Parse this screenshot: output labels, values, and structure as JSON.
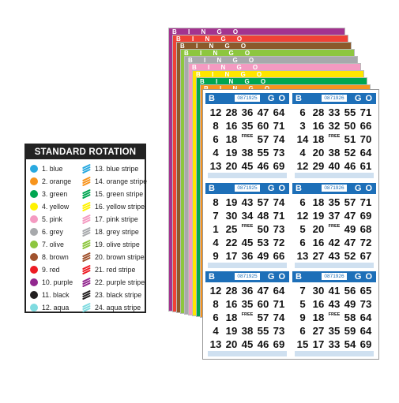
{
  "legend": {
    "title": "STANDARD ROTATION",
    "items": [
      {
        "label": "1. blue",
        "color": "#29a9e0",
        "stripe": false
      },
      {
        "label": "2. orange",
        "color": "#f7941d",
        "stripe": false
      },
      {
        "label": "3. green",
        "color": "#00a651",
        "stripe": false
      },
      {
        "label": "4. yellow",
        "color": "#fff200",
        "stripe": false
      },
      {
        "label": "5. pink",
        "color": "#f49ac1",
        "stripe": false
      },
      {
        "label": "6. grey",
        "color": "#a7a9ac",
        "stripe": false
      },
      {
        "label": "7. olive",
        "color": "#8dc63f",
        "stripe": false
      },
      {
        "label": "8. brown",
        "color": "#a0522d",
        "stripe": false
      },
      {
        "label": "9. red",
        "color": "#ed1c24",
        "stripe": false
      },
      {
        "label": "10. purple",
        "color": "#92278f",
        "stripe": false
      },
      {
        "label": "11. black",
        "color": "#231f20",
        "stripe": false
      },
      {
        "label": "12. aqua",
        "color": "#7fdbe0",
        "stripe": false
      },
      {
        "label": "13. blue stripe",
        "color": "#29a9e0",
        "stripe": true
      },
      {
        "label": "14. orange stripe",
        "color": "#f7941d",
        "stripe": true
      },
      {
        "label": "15. green stripe",
        "color": "#00a651",
        "stripe": true
      },
      {
        "label": "16. yellow stripe",
        "color": "#fff200",
        "stripe": true
      },
      {
        "label": "17. pink stripe",
        "color": "#f49ac1",
        "stripe": true
      },
      {
        "label": "18. grey stripe",
        "color": "#a7a9ac",
        "stripe": true
      },
      {
        "label": "19. olive stripe",
        "color": "#8dc63f",
        "stripe": true
      },
      {
        "label": "20. brown stripe",
        "color": "#a0522d",
        "stripe": true
      },
      {
        "label": "21. red stripe",
        "color": "#ed1c24",
        "stripe": true
      },
      {
        "label": "22. purple stripe",
        "color": "#92278f",
        "stripe": true
      },
      {
        "label": "23. black stripe",
        "color": "#231f20",
        "stripe": true
      },
      {
        "label": "24. aqua stripe",
        "color": "#7fdbe0",
        "stripe": true
      }
    ]
  },
  "sheets": [
    {
      "color": "#a3338f"
    },
    {
      "color": "#ef4136"
    },
    {
      "color": "#8b5a2b"
    },
    {
      "color": "#8dc63f"
    },
    {
      "color": "#a7a9ac"
    },
    {
      "color": "#f49ac1"
    },
    {
      "color": "#ffe600"
    },
    {
      "color": "#00a651"
    },
    {
      "color": "#f7941d"
    }
  ],
  "sheet_label": "B I N G O",
  "cards": [
    {
      "serial": "0871925",
      "nums": [
        [
          "12",
          "28",
          "36",
          "47",
          "64"
        ],
        [
          "8",
          "16",
          "35",
          "60",
          "71"
        ],
        [
          "6",
          "18",
          "FREE",
          "57",
          "74"
        ],
        [
          "4",
          "19",
          "38",
          "55",
          "73"
        ],
        [
          "13",
          "20",
          "45",
          "46",
          "69"
        ]
      ]
    },
    {
      "serial": "0871926",
      "nums": [
        [
          "6",
          "28",
          "33",
          "55",
          "71"
        ],
        [
          "3",
          "16",
          "32",
          "50",
          "66"
        ],
        [
          "14",
          "18",
          "FREE",
          "51",
          "70"
        ],
        [
          "4",
          "20",
          "38",
          "52",
          "64"
        ],
        [
          "12",
          "29",
          "40",
          "46",
          "61"
        ]
      ]
    },
    {
      "serial": "0871925",
      "nums": [
        [
          "8",
          "19",
          "43",
          "57",
          "74"
        ],
        [
          "7",
          "30",
          "34",
          "48",
          "71"
        ],
        [
          "1",
          "25",
          "FREE",
          "50",
          "73"
        ],
        [
          "4",
          "22",
          "45",
          "53",
          "72"
        ],
        [
          "9",
          "17",
          "36",
          "49",
          "66"
        ]
      ]
    },
    {
      "serial": "0871926",
      "nums": [
        [
          "6",
          "18",
          "35",
          "57",
          "71"
        ],
        [
          "12",
          "19",
          "37",
          "47",
          "69"
        ],
        [
          "5",
          "20",
          "FREE",
          "49",
          "68"
        ],
        [
          "6",
          "16",
          "42",
          "47",
          "72"
        ],
        [
          "13",
          "27",
          "43",
          "52",
          "67"
        ]
      ]
    },
    {
      "serial": "0871925",
      "nums": [
        [
          "12",
          "28",
          "36",
          "47",
          "64"
        ],
        [
          "8",
          "16",
          "35",
          "60",
          "71"
        ],
        [
          "6",
          "18",
          "FREE",
          "57",
          "74"
        ],
        [
          "4",
          "19",
          "38",
          "55",
          "73"
        ],
        [
          "13",
          "20",
          "45",
          "46",
          "69"
        ]
      ]
    },
    {
      "serial": "0871926",
      "nums": [
        [
          "7",
          "30",
          "41",
          "56",
          "65"
        ],
        [
          "5",
          "16",
          "43",
          "49",
          "73"
        ],
        [
          "9",
          "18",
          "FREE",
          "58",
          "64"
        ],
        [
          "6",
          "27",
          "35",
          "59",
          "64"
        ],
        [
          "15",
          "17",
          "33",
          "54",
          "69"
        ]
      ]
    }
  ],
  "free_label": "FREE"
}
